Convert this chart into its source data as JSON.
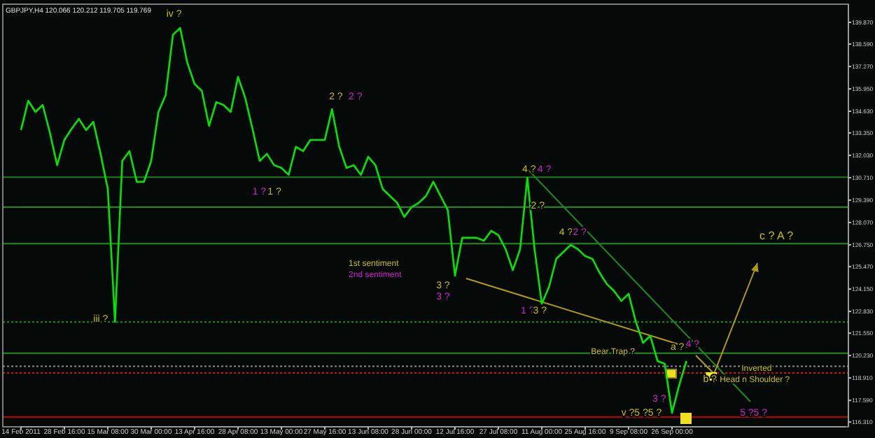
{
  "chart_data": {
    "type": "line",
    "title": "GBPJPY,H4  120.066 120.212 119.705 119.769",
    "categories": [
      "14 Feb 2011",
      null,
      null,
      null,
      null,
      null,
      "28 Feb 16:00",
      null,
      null,
      null,
      null,
      null,
      "15 Mar 08:00",
      null,
      null,
      null,
      null,
      null,
      "30 Mar 00:00",
      null,
      null,
      null,
      null,
      null,
      "13 Apr 16:00",
      null,
      null,
      null,
      null,
      null,
      "28 Apr 08:00",
      null,
      null,
      null,
      null,
      null,
      "13 May 00:00",
      null,
      null,
      null,
      null,
      null,
      "27 May 16:00",
      null,
      null,
      null,
      null,
      null,
      "13 Jun 08:00",
      null,
      null,
      null,
      null,
      null,
      "28 Jun 00:00",
      null,
      null,
      null,
      null,
      null,
      "12 Jul 16:00",
      null,
      null,
      null,
      null,
      null,
      "27 Jul 08:00",
      null,
      null,
      null,
      null,
      null,
      "11 Aug 00:00",
      null,
      null,
      null,
      null,
      null,
      "25 Aug 16:00",
      null,
      null,
      null,
      null,
      null,
      "9 Sep 08:00",
      null,
      null,
      null,
      null,
      null,
      "26 Sep 00:00",
      null,
      null,
      null,
      null,
      null,
      null,
      null,
      null,
      null,
      null,
      null,
      null,
      null,
      null,
      null,
      null,
      null,
      null,
      null,
      null,
      null,
      null,
      null,
      null
    ],
    "series": [
      {
        "color": "#00e600",
        "values": [
          133.52,
          135.25,
          134.59,
          135.0,
          133.35,
          131.45,
          132.94,
          133.6,
          134.18,
          133.52,
          134.01,
          132.12,
          130.05,
          122.22,
          131.7,
          132.28,
          130.47,
          130.47,
          131.7,
          134.59,
          135.58,
          139.13,
          139.54,
          137.48,
          136.24,
          135.83,
          133.77,
          135.17,
          135.0,
          134.59,
          136.65,
          135.42,
          133.6,
          131.7,
          132.12,
          131.45,
          131.29,
          130.88,
          132.53,
          132.28,
          132.94,
          132.94,
          132.94,
          134.75,
          132.53,
          131.29,
          131.45,
          130.88,
          131.95,
          131.45,
          130.05,
          129.64,
          129.23,
          128.4,
          128.98,
          129.23,
          129.64,
          130.47,
          129.64,
          128.81,
          124.94,
          127.17,
          127.17,
          127.17,
          127.0,
          127.58,
          127.33,
          126.5,
          125.27,
          126.5,
          130.71,
          126.5,
          123.29,
          124.28,
          125.93,
          126.34,
          126.75,
          126.5,
          126.09,
          125.93,
          125.1,
          124.44,
          124.03,
          123.45,
          123.87,
          122.22,
          120.98,
          121.39,
          119.91,
          119.74,
          116.85,
          118.5,
          119.91,
          null,
          null,
          null,
          null,
          null,
          null,
          null,
          null,
          null,
          null,
          null,
          null,
          null,
          null,
          null,
          null,
          null,
          null,
          null,
          null,
          null,
          null
        ]
      }
    ],
    "ylim": [
      116.03,
      140.94
    ],
    "yticks": [
      {
        "value": 139.87,
        "label": "139.870"
      },
      {
        "value": 138.59,
        "label": "138.590"
      },
      {
        "value": 137.27,
        "label": "137.270"
      },
      {
        "value": 135.95,
        "label": "135.950"
      },
      {
        "value": 134.63,
        "label": "134.630"
      },
      {
        "value": 133.35,
        "label": "133.350"
      },
      {
        "value": 132.03,
        "label": "132.030"
      },
      {
        "value": 130.71,
        "label": "130.710"
      },
      {
        "value": 129.39,
        "label": "129.390"
      },
      {
        "value": 128.07,
        "label": "128.070"
      },
      {
        "value": 126.75,
        "label": "126.750"
      },
      {
        "value": 125.47,
        "label": "125.470"
      },
      {
        "value": 124.15,
        "label": "124.150"
      },
      {
        "value": 122.83,
        "label": "122.830"
      },
      {
        "value": 121.55,
        "label": "121.550"
      },
      {
        "value": 120.23,
        "label": "120.230"
      },
      {
        "value": 118.91,
        "label": "118.910"
      },
      {
        "value": 117.59,
        "label": "117.590"
      },
      {
        "value": 116.31,
        "label": "116.310"
      }
    ],
    "ref_lines": [
      {
        "axis": "y",
        "value": 130.74,
        "color": "#1e7a1e",
        "line_style": "solid"
      },
      {
        "axis": "y",
        "value": 128.98,
        "color": "#1e8c1e",
        "line_style": "solid"
      },
      {
        "axis": "y",
        "value": 126.83,
        "color": "#1e8c1e",
        "line_style": "solid"
      },
      {
        "axis": "y",
        "value": 122.21,
        "color": "#1e8c1e",
        "line_style": "dotted"
      },
      {
        "axis": "y",
        "value": 120.37,
        "color": "#1e8c1e",
        "line_style": "solid"
      },
      {
        "axis": "y",
        "value": 119.6,
        "color": "#8c8c8c",
        "line_style": "dotted"
      },
      {
        "axis": "y",
        "value": 119.21,
        "color": "#d01010",
        "line_style": "dotted"
      },
      {
        "axis": "y",
        "value": 116.61,
        "color": "#c00000",
        "line_style": "solid"
      }
    ],
    "annotations": [
      "iv ?",
      "2 ?",
      "2 ?",
      "1 ?",
      "1 ?",
      "iii ?",
      "4 ?",
      "4 ?",
      "2 ?",
      "4 ?",
      "2 ?",
      "3 ?",
      "3 ?",
      "1 ?",
      "3 ?",
      "1st sentiment",
      "2nd sentiment",
      "c ? A ?",
      "Bear Trap ?",
      "a ?",
      "4 ?",
      "Inverted",
      "Head n Shoulder ?",
      "b ?",
      "3 ?",
      "v ?5 ?5 ?",
      "5 ?5 ?"
    ]
  }
}
